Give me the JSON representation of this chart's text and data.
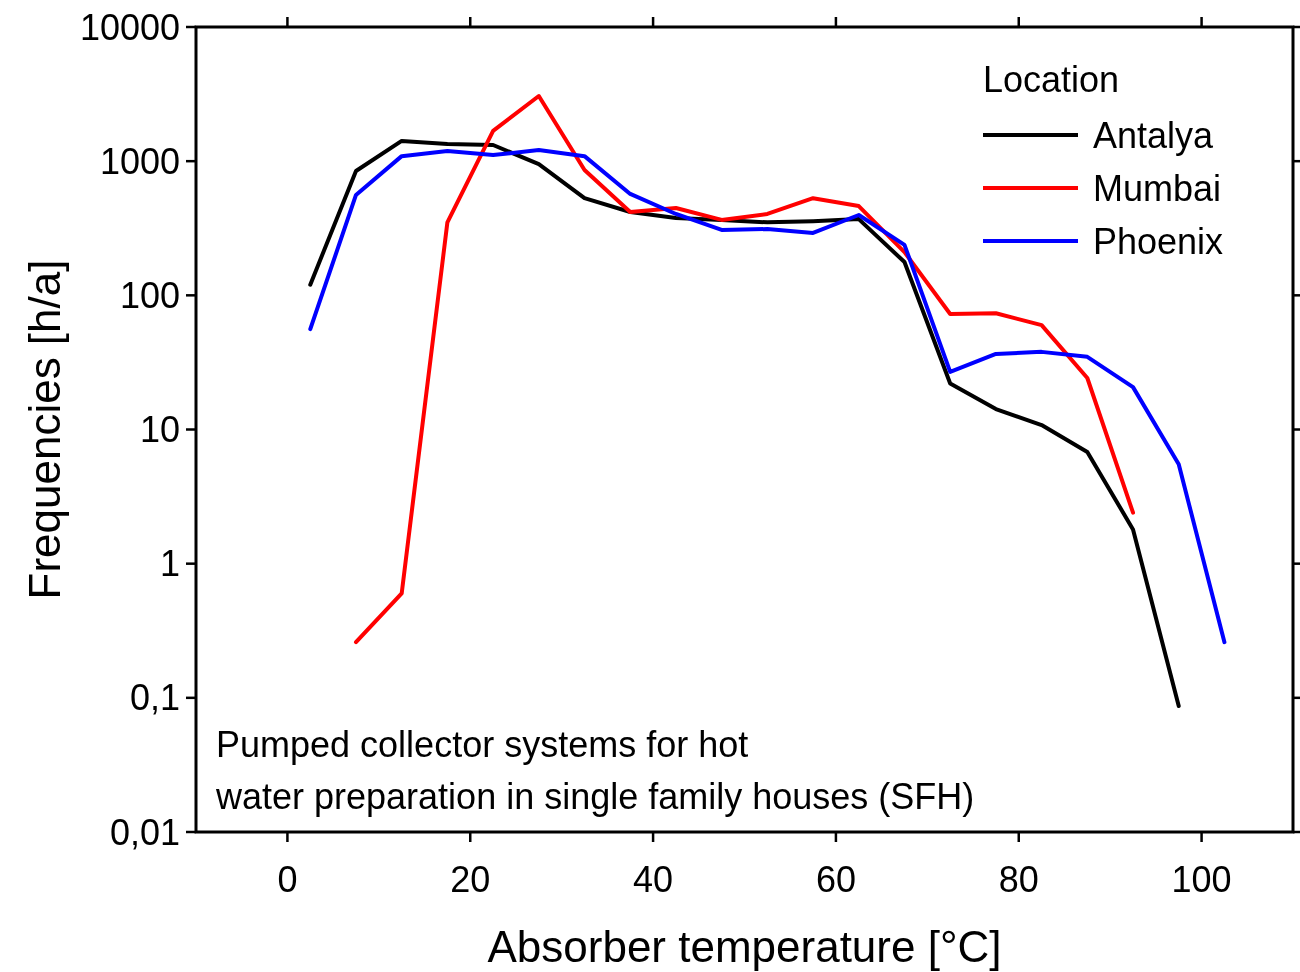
{
  "chart_data": {
    "type": "line",
    "xlabel": "Absorber temperature [°C]",
    "ylabel": "Frequencies [h/a]",
    "legend_title": "Location",
    "legend": "top right",
    "log": "y",
    "grid": false,
    "xlim": [
      -10,
      110
    ],
    "xticks": [
      0,
      20,
      40,
      60,
      80,
      100
    ],
    "ylim": [
      0.01,
      10000
    ],
    "yticks": [
      {
        "value": 0.01,
        "label": "0,01"
      },
      {
        "value": 0.1,
        "label": "0,1"
      },
      1,
      10,
      100,
      1000,
      10000
    ],
    "annotations": [
      "Pumped collector systems for hot\nwater preparation in single family houses (SFH)"
    ],
    "series": [
      {
        "name": "Antalya",
        "color": "#000000",
        "x": [
          2.5,
          7.5,
          12.5,
          17.5,
          22.5,
          27.5,
          32.5,
          37.5,
          42.5,
          47.5,
          52.5,
          57.5,
          62.5,
          67.5,
          72.5,
          77.5,
          82.5,
          87.5,
          92.5,
          97.5
        ],
        "values": [
          120,
          845,
          1415,
          1340,
          1320,
          950,
          530,
          418,
          377,
          365,
          350,
          357,
          370,
          177,
          22,
          14.2,
          10.8,
          6.8,
          1.8,
          0.087
        ]
      },
      {
        "name": "Mumbai",
        "color": "#ff0000",
        "x": [
          7.5,
          12.5,
          17.5,
          22.5,
          27.5,
          32.5,
          37.5,
          42.5,
          47.5,
          52.5,
          57.5,
          62.5,
          67.5,
          72.5,
          77.5,
          82.5,
          87.5,
          92.5
        ],
        "values": [
          0.26,
          0.6,
          350,
          1680,
          3060,
          860,
          418,
          448,
          365,
          404,
          530,
          463,
          210,
          72.6,
          73.5,
          60,
          24.2,
          2.4
        ]
      },
      {
        "name": "Phoenix",
        "color": "#0000ff",
        "x": [
          2.5,
          7.5,
          12.5,
          17.5,
          22.5,
          27.5,
          32.5,
          37.5,
          42.5,
          47.5,
          52.5,
          57.5,
          62.5,
          67.5,
          72.5,
          77.5,
          82.5,
          87.5,
          92.5,
          97.5,
          102.5
        ],
        "values": [
          56,
          560,
          1090,
          1190,
          1110,
          1210,
          1090,
          570,
          404,
          307,
          312,
          292,
          397,
          238,
          26.9,
          36.6,
          37.9,
          34.8,
          20.7,
          5.5,
          0.26
        ]
      }
    ]
  }
}
